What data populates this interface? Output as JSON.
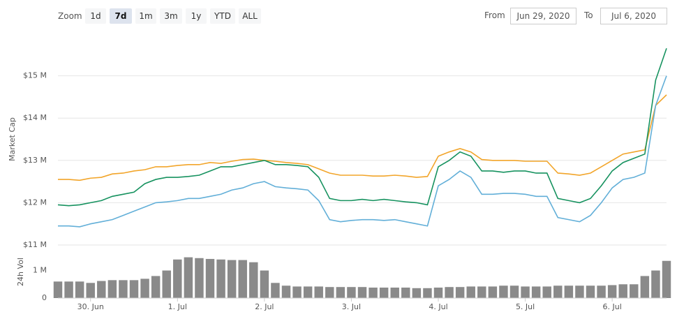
{
  "controls": {
    "zoom_label": "Zoom",
    "zoom_buttons": [
      "1d",
      "7d",
      "1m",
      "3m",
      "1y",
      "YTD",
      "ALL"
    ],
    "selected_index": 1,
    "from_label": "From",
    "from_value": "Jun 29, 2020",
    "to_label": "To",
    "to_value": "Jul 6, 2020"
  },
  "chart_data": [
    {
      "type": "line",
      "y_label": "Market Cap",
      "ylim": [
        11,
        16
      ],
      "yticks": [
        {
          "value": 11,
          "label": "$11 M"
        },
        {
          "value": 12,
          "label": "$12 M"
        },
        {
          "value": 13,
          "label": "$13 M"
        },
        {
          "value": 14,
          "label": "$14 M"
        },
        {
          "value": 15,
          "label": "$15 M"
        }
      ],
      "grid": true,
      "series": [
        {
          "color": "#f2a52a",
          "values": [
            12.55,
            12.55,
            12.53,
            12.58,
            12.6,
            12.68,
            12.7,
            12.75,
            12.78,
            12.85,
            12.85,
            12.88,
            12.9,
            12.9,
            12.95,
            12.93,
            12.98,
            13.02,
            13.03,
            13.0,
            12.98,
            12.95,
            12.93,
            12.9,
            12.8,
            12.7,
            12.65,
            12.65,
            12.65,
            12.63,
            12.63,
            12.65,
            12.63,
            12.6,
            12.62,
            13.1,
            13.2,
            13.28,
            13.2,
            13.02,
            13.0,
            13.0,
            13.0,
            12.98,
            12.98,
            12.98,
            12.7,
            12.68,
            12.65,
            12.7,
            12.85,
            13.0,
            13.15,
            13.2,
            13.25,
            14.3,
            14.55
          ]
        },
        {
          "color": "#16925f",
          "values": [
            11.95,
            11.93,
            11.95,
            12.0,
            12.05,
            12.15,
            12.2,
            12.25,
            12.45,
            12.55,
            12.6,
            12.6,
            12.62,
            12.65,
            12.75,
            12.85,
            12.85,
            12.9,
            12.95,
            13.0,
            12.9,
            12.9,
            12.88,
            12.85,
            12.6,
            12.1,
            12.05,
            12.05,
            12.08,
            12.05,
            12.08,
            12.05,
            12.02,
            12.0,
            11.95,
            12.85,
            13.0,
            13.2,
            13.1,
            12.75,
            12.75,
            12.72,
            12.75,
            12.75,
            12.7,
            12.7,
            12.1,
            12.05,
            12.0,
            12.1,
            12.4,
            12.75,
            12.95,
            13.05,
            13.15,
            14.9,
            15.65
          ]
        },
        {
          "color": "#62afd8",
          "values": [
            11.45,
            11.45,
            11.43,
            11.5,
            11.55,
            11.6,
            11.7,
            11.8,
            11.9,
            12.0,
            12.02,
            12.05,
            12.1,
            12.1,
            12.15,
            12.2,
            12.3,
            12.35,
            12.45,
            12.5,
            12.38,
            12.35,
            12.33,
            12.3,
            12.05,
            11.6,
            11.55,
            11.58,
            11.6,
            11.6,
            11.58,
            11.6,
            11.55,
            11.5,
            11.45,
            12.4,
            12.55,
            12.75,
            12.6,
            12.2,
            12.2,
            12.22,
            12.22,
            12.2,
            12.15,
            12.15,
            11.65,
            11.6,
            11.55,
            11.7,
            12.0,
            12.35,
            12.55,
            12.6,
            12.7,
            14.3,
            15.0
          ]
        }
      ]
    },
    {
      "type": "bar",
      "y_label": "24h Vol",
      "color": "#8a8a8a",
      "ylim": [
        0,
        1.9
      ],
      "yticks": [
        0,
        {
          "value": 1,
          "label": "1 M"
        }
      ],
      "categories": [
        null,
        null,
        null,
        "30. Jun",
        null,
        null,
        null,
        null,
        null,
        null,
        null,
        "1. Jul",
        null,
        null,
        null,
        null,
        null,
        null,
        null,
        "2. Jul",
        null,
        null,
        null,
        null,
        null,
        null,
        null,
        "3. Jul",
        null,
        null,
        null,
        null,
        null,
        null,
        null,
        "4. Jul",
        null,
        null,
        null,
        null,
        null,
        null,
        null,
        "5. Jul",
        null,
        null,
        null,
        null,
        null,
        null,
        null,
        "6. Jul",
        null,
        null,
        null,
        null,
        null
      ],
      "values": [
        0.6,
        0.6,
        0.6,
        0.55,
        0.62,
        0.65,
        0.65,
        0.65,
        0.7,
        0.8,
        1.0,
        1.4,
        1.48,
        1.45,
        1.42,
        1.4,
        1.38,
        1.38,
        1.3,
        1.0,
        0.55,
        0.45,
        0.42,
        0.42,
        0.42,
        0.4,
        0.4,
        0.4,
        0.4,
        0.38,
        0.38,
        0.38,
        0.38,
        0.36,
        0.36,
        0.38,
        0.4,
        0.4,
        0.42,
        0.42,
        0.42,
        0.45,
        0.45,
        0.42,
        0.42,
        0.42,
        0.45,
        0.45,
        0.45,
        0.45,
        0.45,
        0.47,
        0.5,
        0.5,
        0.8,
        1.0,
        1.35
      ]
    }
  ]
}
